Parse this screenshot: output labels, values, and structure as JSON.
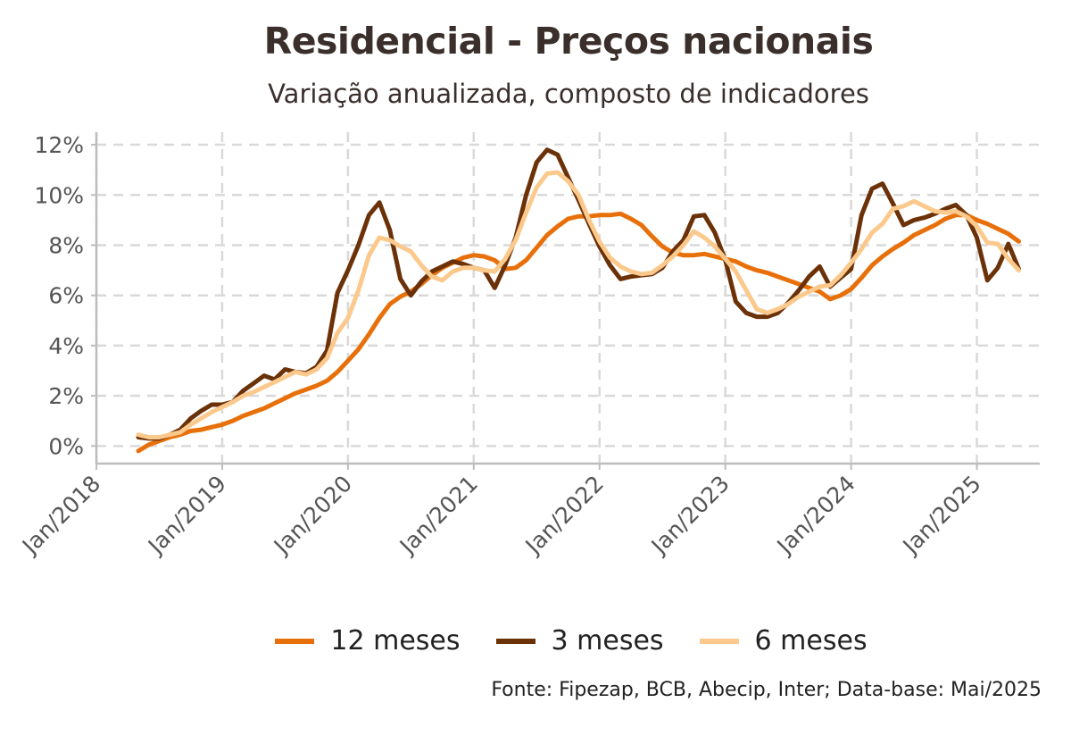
{
  "chart_data": {
    "type": "line",
    "title": "Residencial - Preços nacionais",
    "subtitle": "Variação anualizada, composto de indicadores",
    "source": "Fonte: Fipezap, BCB, Abecip, Inter; Data-base: Mai/2025",
    "x_tick_labels": [
      "Jan/2018",
      "Jan/2019",
      "Jan/2020",
      "Jan/2021",
      "Jan/2022",
      "Jan/2023",
      "Jan/2024",
      "Jan/2025"
    ],
    "y_tick_labels": [
      "0%",
      "2%",
      "4%",
      "6%",
      "8%",
      "10%",
      "12%"
    ],
    "y_ticks": [
      0,
      2,
      4,
      6,
      8,
      10,
      12
    ],
    "xlim": [
      "Jan/2018",
      "Jul/2025"
    ],
    "ylim": [
      -0.7,
      12.5
    ],
    "grid": true,
    "legend_position": "bottom",
    "x": [
      "May/2018",
      "Jun/2018",
      "Jul/2018",
      "Aug/2018",
      "Sep/2018",
      "Oct/2018",
      "Nov/2018",
      "Dec/2018",
      "Jan/2019",
      "Feb/2019",
      "Mar/2019",
      "Apr/2019",
      "May/2019",
      "Jun/2019",
      "Jul/2019",
      "Aug/2019",
      "Sep/2019",
      "Oct/2019",
      "Nov/2019",
      "Dec/2019",
      "Jan/2020",
      "Feb/2020",
      "Mar/2020",
      "Apr/2020",
      "May/2020",
      "Jun/2020",
      "Jul/2020",
      "Aug/2020",
      "Sep/2020",
      "Oct/2020",
      "Nov/2020",
      "Dec/2020",
      "Jan/2021",
      "Feb/2021",
      "Mar/2021",
      "Apr/2021",
      "May/2021",
      "Jun/2021",
      "Jul/2021",
      "Aug/2021",
      "Sep/2021",
      "Oct/2021",
      "Nov/2021",
      "Dec/2021",
      "Jan/2022",
      "Feb/2022",
      "Mar/2022",
      "Apr/2022",
      "May/2022",
      "Jun/2022",
      "Jul/2022",
      "Aug/2022",
      "Sep/2022",
      "Oct/2022",
      "Nov/2022",
      "Dec/2022",
      "Jan/2023",
      "Feb/2023",
      "Mar/2023",
      "Apr/2023",
      "May/2023",
      "Jun/2023",
      "Jul/2023",
      "Aug/2023",
      "Sep/2023",
      "Oct/2023",
      "Nov/2023",
      "Dec/2023",
      "Jan/2024",
      "Feb/2024",
      "Mar/2024",
      "Apr/2024",
      "May/2024",
      "Jun/2024",
      "Jul/2024",
      "Aug/2024",
      "Sep/2024",
      "Oct/2024",
      "Nov/2024",
      "Dec/2024",
      "Jan/2025",
      "Feb/2025",
      "Mar/2025",
      "Apr/2025",
      "May/2025"
    ],
    "series": [
      {
        "name": "12 meses",
        "color": "#e8700a",
        "values": [
          -0.2,
          0.05,
          0.2,
          0.35,
          0.45,
          0.6,
          0.65,
          0.75,
          0.85,
          1.0,
          1.2,
          1.35,
          1.5,
          1.7,
          1.9,
          2.1,
          2.25,
          2.4,
          2.6,
          2.95,
          3.4,
          3.85,
          4.45,
          5.1,
          5.65,
          5.95,
          6.15,
          6.45,
          6.8,
          7.1,
          7.3,
          7.5,
          7.6,
          7.55,
          7.4,
          7.05,
          7.1,
          7.4,
          7.9,
          8.4,
          8.75,
          9.05,
          9.15,
          9.15,
          9.2,
          9.2,
          9.25,
          9.05,
          8.8,
          8.35,
          7.95,
          7.7,
          7.6,
          7.6,
          7.65,
          7.55,
          7.45,
          7.35,
          7.15,
          7.0,
          6.9,
          6.75,
          6.6,
          6.45,
          6.3,
          6.15,
          5.85,
          6.0,
          6.25,
          6.7,
          7.2,
          7.55,
          7.85,
          8.1,
          8.4,
          8.6,
          8.8,
          9.05,
          9.2,
          9.2,
          9.0,
          8.85,
          8.65,
          8.45,
          8.15
        ]
      },
      {
        "name": "3 meses",
        "color": "#6b3108",
        "values": [
          0.35,
          0.3,
          0.3,
          0.45,
          0.65,
          1.1,
          1.4,
          1.65,
          1.65,
          1.75,
          2.2,
          2.5,
          2.8,
          2.65,
          3.05,
          2.95,
          2.9,
          3.15,
          3.8,
          6.1,
          7.0,
          8.0,
          9.2,
          9.7,
          8.6,
          6.65,
          6.0,
          6.55,
          6.95,
          7.15,
          7.35,
          7.25,
          7.1,
          7.0,
          6.3,
          7.2,
          8.3,
          10.0,
          11.3,
          11.8,
          11.6,
          10.7,
          9.8,
          8.85,
          7.95,
          7.2,
          6.65,
          6.75,
          6.8,
          6.85,
          7.1,
          7.75,
          8.2,
          9.15,
          9.2,
          8.5,
          7.4,
          5.75,
          5.3,
          5.15,
          5.15,
          5.3,
          5.7,
          6.2,
          6.75,
          7.15,
          6.35,
          6.7,
          7.05,
          9.2,
          10.25,
          10.45,
          9.65,
          8.8,
          9.0,
          9.1,
          9.25,
          9.45,
          9.6,
          9.2,
          8.3,
          6.6,
          7.1,
          8.05,
          7.05
        ]
      },
      {
        "name": "6 meses",
        "color": "#fcc98c",
        "values": [
          0.45,
          0.35,
          0.35,
          0.45,
          0.55,
          0.85,
          1.1,
          1.35,
          1.55,
          1.75,
          2.0,
          2.15,
          2.35,
          2.55,
          2.75,
          2.95,
          2.85,
          3.05,
          3.5,
          4.5,
          5.1,
          6.2,
          7.6,
          8.3,
          8.2,
          7.95,
          7.75,
          7.2,
          6.75,
          6.6,
          6.95,
          7.1,
          7.1,
          7.0,
          6.95,
          7.45,
          8.2,
          9.3,
          10.3,
          10.85,
          10.9,
          10.55,
          10.0,
          9.0,
          8.15,
          7.5,
          7.15,
          6.95,
          6.85,
          6.9,
          7.2,
          7.55,
          8.0,
          8.55,
          8.3,
          7.95,
          7.45,
          6.95,
          6.2,
          5.45,
          5.3,
          5.45,
          5.65,
          5.95,
          6.15,
          6.35,
          6.4,
          6.8,
          7.3,
          7.85,
          8.5,
          8.85,
          9.45,
          9.55,
          9.75,
          9.55,
          9.35,
          9.3,
          9.35,
          9.15,
          8.75,
          8.1,
          8.05,
          7.45,
          7.0
        ]
      }
    ]
  }
}
